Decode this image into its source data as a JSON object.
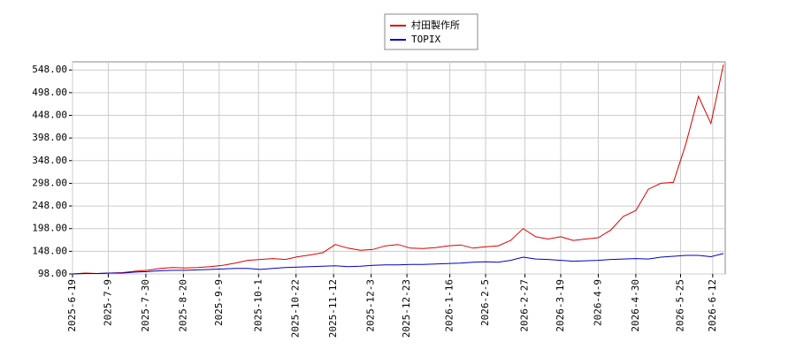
{
  "chart_data": {
    "type": "line",
    "x": [
      "2025-6-19",
      "2025-6-26",
      "2025-7-3",
      "2025-7-10",
      "2025-7-17",
      "2025-7-24",
      "2025-7-31",
      "2025-8-7",
      "2025-8-14",
      "2025-8-21",
      "2025-8-28",
      "2025-9-4",
      "2025-9-11",
      "2025-9-18",
      "2025-9-25",
      "2025-10-2",
      "2025-10-9",
      "2025-10-16",
      "2025-10-23",
      "2025-10-30",
      "2025-11-6",
      "2025-11-13",
      "2025-11-20",
      "2025-11-27",
      "2025-12-4",
      "2025-12-11",
      "2025-12-18",
      "2025-12-25",
      "2026-1-1",
      "2026-1-8",
      "2026-1-15",
      "2026-1-22",
      "2026-1-29",
      "2026-2-5",
      "2026-2-12",
      "2026-2-19",
      "2026-2-26",
      "2026-3-5",
      "2026-3-12",
      "2026-3-19",
      "2026-3-26",
      "2026-4-2",
      "2026-4-9",
      "2026-4-16",
      "2026-4-23",
      "2026-4-30",
      "2026-5-7",
      "2026-5-14",
      "2026-5-21",
      "2026-5-28",
      "2026-6-4",
      "2026-6-11",
      "2026-6-18"
    ],
    "series": [
      {
        "name": "村田製作所",
        "color": "#dd0000",
        "values": [
          98,
          100,
          99,
          100,
          101,
          104,
          106,
          110,
          112,
          111,
          112,
          114,
          117,
          122,
          128,
          130,
          132,
          130,
          136,
          140,
          145,
          163,
          155,
          150,
          152,
          160,
          163,
          155,
          154,
          156,
          160,
          162,
          155,
          158,
          160,
          172,
          198,
          180,
          175,
          180,
          172,
          175,
          178,
          195,
          225,
          238,
          285,
          298,
          300,
          385,
          490,
          430,
          560
        ]
      },
      {
        "name": "TOPIX",
        "color": "#0000cc",
        "values": [
          98,
          99,
          99,
          100,
          100,
          102,
          103,
          105,
          106,
          106,
          107,
          108,
          109,
          110,
          110,
          108,
          110,
          112,
          113,
          114,
          115,
          116,
          114,
          115,
          117,
          118,
          118,
          119,
          119,
          120,
          121,
          122,
          124,
          125,
          124,
          128,
          135,
          131,
          130,
          128,
          126,
          127,
          128,
          130,
          131,
          132,
          131,
          135,
          137,
          139,
          139,
          136,
          143
        ]
      }
    ],
    "xlim": [
      "2025-6-19",
      "2026-6-19"
    ],
    "xticks": [
      "2025-6-19",
      "2025-7-9",
      "2025-7-30",
      "2025-8-20",
      "2025-9-9",
      "2025-10-1",
      "2025-10-22",
      "2025-11-12",
      "2025-12-3",
      "2025-12-23",
      "2026-1-16",
      "2026-2-5",
      "2026-2-27",
      "2026-3-19",
      "2026-4-9",
      "2026-4-30",
      "2026-5-25",
      "2026-6-12"
    ],
    "ylim": [
      98,
      566
    ],
    "yticks": [
      {
        "value": 98,
        "label": "98.00"
      },
      {
        "value": 148,
        "label": "148.00"
      },
      {
        "value": 198,
        "label": "198.00"
      },
      {
        "value": 248,
        "label": "248.00"
      },
      {
        "value": 298,
        "label": "298.00"
      },
      {
        "value": 348,
        "label": "348.00"
      },
      {
        "value": 398,
        "label": "398.00"
      },
      {
        "value": 448,
        "label": "448.00"
      },
      {
        "value": 498,
        "label": "498.00"
      },
      {
        "value": 548,
        "label": "548.00"
      }
    ],
    "grid": true
  }
}
